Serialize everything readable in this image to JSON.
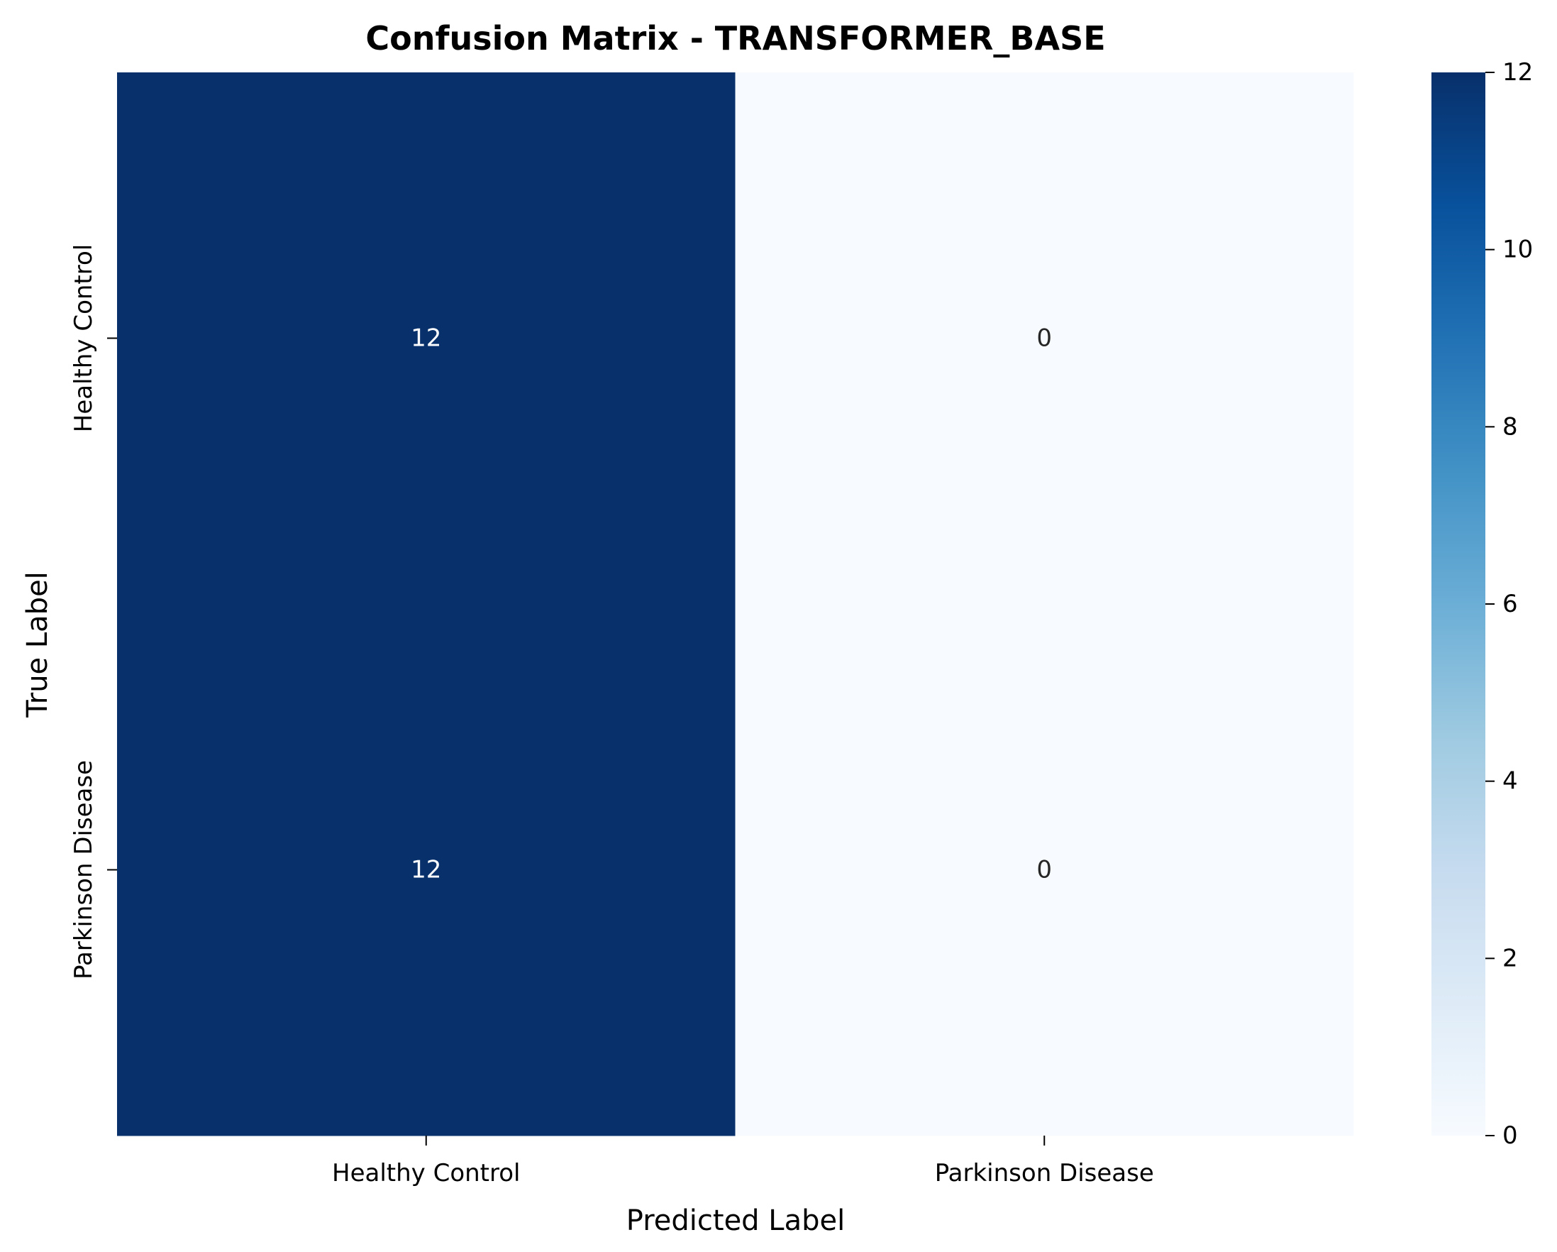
{
  "chart_data": {
    "type": "heatmap",
    "title": "Confusion Matrix - TRANSFORMER_BASE",
    "xlabel": "Predicted Label",
    "ylabel": "True Label",
    "x_categories": [
      "Healthy Control",
      "Parkinson Disease"
    ],
    "y_categories": [
      "Healthy Control",
      "Parkinson Disease"
    ],
    "values": [
      [
        12,
        0
      ],
      [
        12,
        0
      ]
    ],
    "colorscale": "Blues",
    "vmin": 0,
    "vmax": 12,
    "colorbar_ticks": [
      "0",
      "2",
      "4",
      "6",
      "8",
      "10",
      "12"
    ],
    "colors": {
      "low": "#f7fbff",
      "high": "#08306b",
      "annotation_dark": "#ffffff",
      "annotation_light": "#262626"
    }
  }
}
